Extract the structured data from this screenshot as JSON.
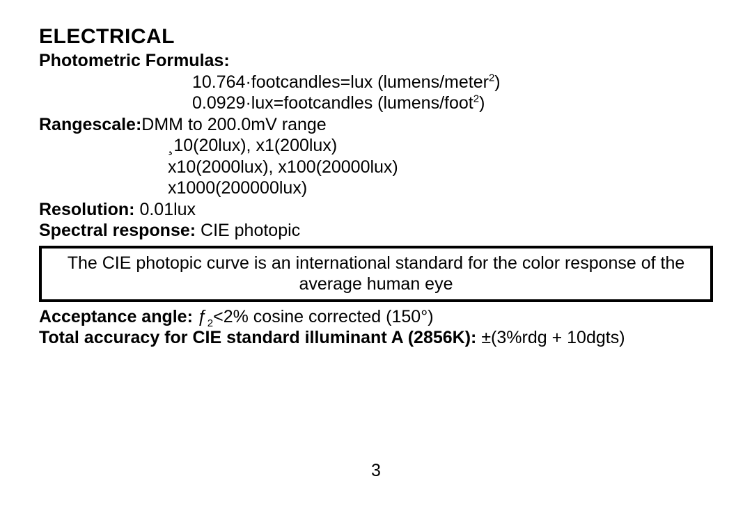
{
  "section_title": "ELECTRICAL",
  "photometric": {
    "heading": "Photometric Formulas:",
    "line1_pre": "10.764·footcandles=lux (lumens/meter",
    "line1_sup": "2",
    "line1_post": ")",
    "line2_pre": "0.0929·lux=footcandles (lumens/foot",
    "line2_sup": "2",
    "line2_post": ")"
  },
  "rangescale": {
    "heading": "Rangescale:",
    "first_inline": "DMM to 200.0mV range",
    "line2": "¸10(20lux), x1(200lux)",
    "line3": "x10(2000lux), x100(20000lux)",
    "line4": "x1000(200000lux)"
  },
  "resolution": {
    "heading": "Resolution: ",
    "value": "0.01lux"
  },
  "spectral": {
    "heading": "Spectral response: ",
    "value": "CIE photopic"
  },
  "boxed_note": "The CIE photopic curve is an international standard for the color response of the average human eye",
  "acceptance": {
    "heading": "Acceptance angle: ",
    "value_pre": "ƒ",
    "value_sub": "2",
    "value_post": "<2% cosine corrected (150°)"
  },
  "accuracy": {
    "heading": "Total accuracy for CIE standard illuminant A (2856K): ",
    "value": "±(3%rdg + 10dgts)"
  },
  "page_number": "3"
}
